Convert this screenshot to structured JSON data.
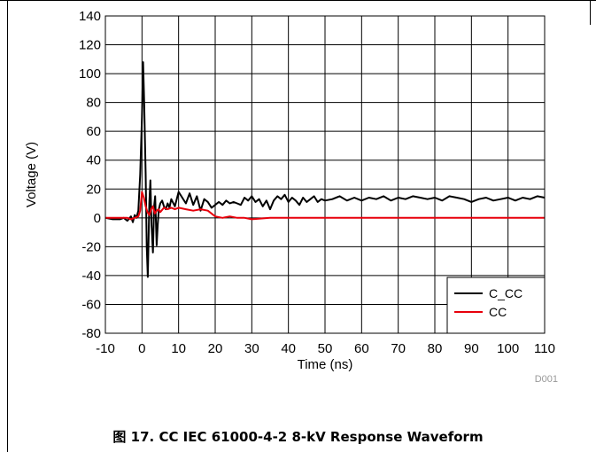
{
  "caption": "图 17. CC IEC 61000-4-2 8-kV Response Waveform",
  "chart_data": {
    "type": "line",
    "xlabel": "Time (ns)",
    "ylabel": "Voltage (V)",
    "code": "D001",
    "xlim": [
      -10,
      110
    ],
    "ylim": [
      -80,
      140
    ],
    "x_ticks": [
      "-10",
      "0",
      "10",
      "20",
      "30",
      "40",
      "50",
      "60",
      "70",
      "80",
      "90",
      "100",
      "110"
    ],
    "y_ticks": [
      "140",
      "120",
      "100",
      "80",
      "60",
      "40",
      "20",
      "0",
      "-20",
      "-40",
      "-60",
      "-80"
    ],
    "grid": true,
    "legend_position": "bottom-right",
    "series": [
      {
        "name": "C_CC",
        "color": "#000000",
        "x": [
          -10,
          -8,
          -6,
          -5,
          -4,
          -3,
          -2.5,
          -2,
          -1.5,
          -1,
          -0.5,
          0,
          0.3,
          0.6,
          1,
          1.3,
          1.6,
          2,
          2.3,
          2.6,
          3,
          3.3,
          3.6,
          4,
          4.3,
          4.6,
          5,
          5.5,
          6,
          6.5,
          7,
          7.5,
          8,
          9,
          10,
          11,
          12,
          13,
          14,
          15,
          16,
          17,
          18,
          19,
          20,
          21,
          22,
          23,
          24,
          25,
          26,
          27,
          28,
          29,
          30,
          31,
          32,
          33,
          34,
          35,
          36,
          37,
          38,
          39,
          40,
          41,
          42,
          43,
          44,
          45,
          46,
          47,
          48,
          49,
          50,
          52,
          54,
          56,
          58,
          60,
          62,
          64,
          66,
          68,
          70,
          72,
          74,
          76,
          78,
          80,
          82,
          84,
          86,
          88,
          90,
          92,
          94,
          96,
          98,
          100,
          102,
          104,
          106,
          108,
          110
        ],
        "values": [
          0,
          -1,
          -1,
          0,
          -2,
          1,
          -3,
          2,
          0,
          5,
          30,
          70,
          108,
          80,
          30,
          -20,
          -41,
          10,
          26,
          -5,
          -24,
          8,
          15,
          -19,
          -5,
          6,
          10,
          12,
          8,
          6,
          10,
          7,
          13,
          8,
          18,
          14,
          10,
          17,
          9,
          15,
          5,
          13,
          11,
          7,
          9,
          11,
          9,
          12,
          10,
          11,
          10,
          9,
          14,
          12,
          15,
          11,
          13,
          8,
          12,
          6,
          12,
          15,
          13,
          16,
          11,
          14,
          12,
          9,
          14,
          11,
          13,
          15,
          11,
          13,
          12,
          13,
          15,
          12,
          14,
          12,
          14,
          13,
          15,
          12,
          14,
          13,
          15,
          14,
          13,
          14,
          12,
          15,
          14,
          13,
          11,
          13,
          14,
          12,
          13,
          14,
          12,
          14,
          13,
          15,
          14
        ]
      },
      {
        "name": "CC",
        "color": "#e8000b",
        "x": [
          -10,
          -8,
          -6,
          -4,
          -3,
          -2,
          -1,
          -0.5,
          0,
          0.5,
          1,
          1.5,
          2,
          2.5,
          3,
          3.5,
          4,
          4.5,
          5,
          6,
          7,
          8,
          9,
          10,
          12,
          14,
          16,
          18,
          20,
          22,
          24,
          26,
          28,
          30,
          35,
          40,
          45,
          50,
          55,
          60,
          65,
          70,
          75,
          80,
          85,
          90,
          95,
          100,
          105,
          110
        ],
        "values": [
          0,
          0,
          0,
          0,
          -1,
          0,
          1,
          5,
          18,
          14,
          8,
          4,
          2,
          6,
          8,
          3,
          5,
          6,
          4,
          7,
          6,
          7,
          6,
          7,
          6,
          5,
          6,
          5,
          1,
          0,
          1,
          0,
          0,
          -1,
          0,
          0,
          0,
          0,
          0,
          0,
          0,
          0,
          0,
          0,
          0,
          0,
          0,
          0,
          0,
          0
        ]
      }
    ]
  }
}
